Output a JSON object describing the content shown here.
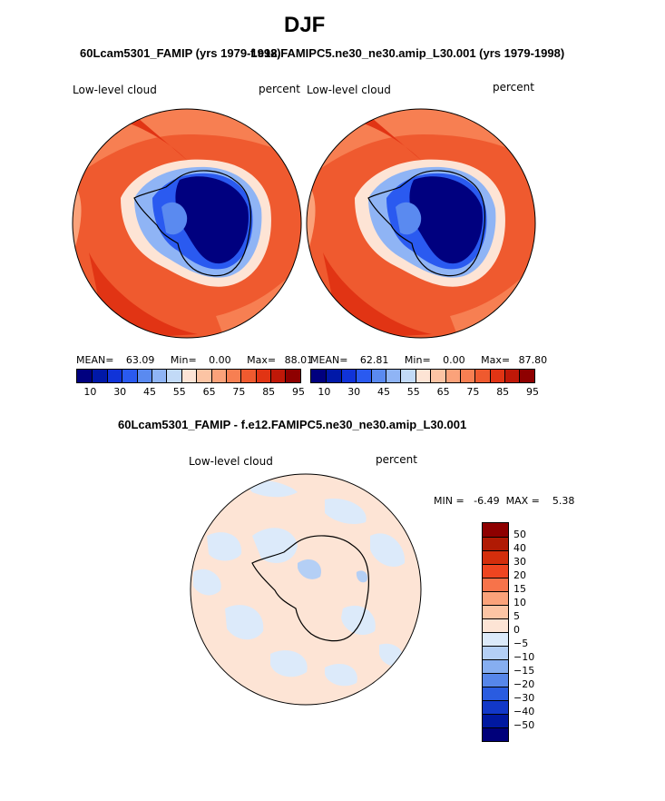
{
  "title": "DJF",
  "panel1": {
    "subtitle": "60Lcam5301_FAMIP (yrs 1979-1998)",
    "left_label": "Low-level cloud",
    "right_label": "percent",
    "stats": {
      "mean_label": "MEAN=",
      "mean": "63.09",
      "min_label": "Min=",
      "min": "0.00",
      "max_label": "Max=",
      "max": "88.01"
    }
  },
  "panel2": {
    "subtitle": "f.e12.FAMIPC5.ne30_ne30.amip_L30.001 (yrs 1979-1998)",
    "left_label": "Low-level cloud",
    "right_label": "percent",
    "stats": {
      "mean_label": "MEAN=",
      "mean": "62.81",
      "min_label": "Min=",
      "min": "0.00",
      "max_label": "Max=",
      "max": "87.80"
    }
  },
  "horizontal_colorbar": {
    "colors": [
      "#00007f",
      "#0018a8",
      "#1033d8",
      "#2a5af0",
      "#5a8af0",
      "#8fb4f5",
      "#c2daf7",
      "#fde4d5",
      "#fcc4a4",
      "#fba27a",
      "#f77f52",
      "#ef5a2f",
      "#e13414",
      "#c01808",
      "#8e0000"
    ],
    "labels": [
      "10",
      "30",
      "45",
      "55",
      "65",
      "75",
      "85",
      "95"
    ]
  },
  "panel3": {
    "subtitle": "60Lcam5301_FAMIP - f.e12.FAMIPC5.ne30_ne30.amip_L30.001",
    "left_label": "Low-level cloud",
    "right_label": "percent",
    "minmax": "MIN =   -6.49  MAX =    5.38"
  },
  "vertical_colorbar": {
    "colors": [
      "#8e0000",
      "#b01a04",
      "#d42e0c",
      "#ef4520",
      "#f7734a",
      "#fba27a",
      "#fcc4a4",
      "#fde4d5",
      "#dceafa",
      "#b4cff5",
      "#86aef0",
      "#5686ea",
      "#2a5ce0",
      "#1238c8",
      "#0018a0",
      "#00007a"
    ],
    "labels": [
      "50",
      "40",
      "30",
      "20",
      "15",
      "10",
      "5",
      "0",
      "−5",
      "−10",
      "−15",
      "−20",
      "−30",
      "−40",
      "−50"
    ]
  }
}
